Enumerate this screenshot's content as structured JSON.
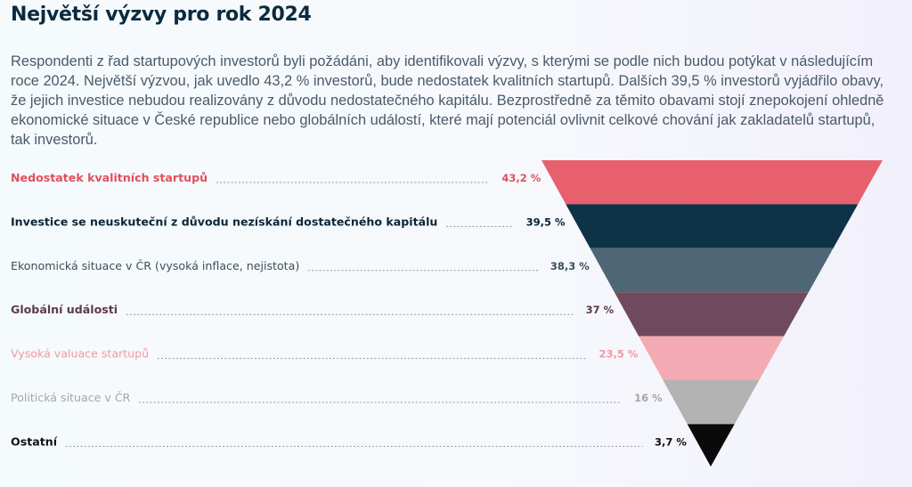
{
  "header": {
    "title": "Největší výzvy pro rok 2024",
    "intro": "Respondenti z řad startupových investorů byli požádáni, aby identifikovali výzvy, s kterými se podle nich budou potýkat v následujícím roce 2024. Největší výzvou, jak uvedlo 43,2 % investorů, bude nedostatek kvalitních startupů. Dalších 39,5 % investorů vyjádřilo obavy, že jejich investice nebudou realizovány z důvodu nedostatečného kapitálu. Bezprostředně za těmito obavami stojí znepokojení ohledně ekonomické situace v České republice nebo globálních událostí, které mají potenciál ovlivnit celkové chování jak zakladatelů startupů, tak investorů."
  },
  "chart_data": {
    "type": "funnel",
    "unit": "%",
    "items": [
      {
        "label": "Nedostatek kvalitních startupů",
        "value": 43.2,
        "value_label": "43,2 %",
        "color": "#e8606e",
        "text_color": "#e0505e",
        "bold": true
      },
      {
        "label": "Investice se neuskuteční z důvodu nezískání dostatečného kapitálu",
        "value": 39.5,
        "value_label": "39,5 %",
        "color": "#0e3347",
        "text_color": "#0b2538",
        "bold": true
      },
      {
        "label": "Ekonomická situace v ČR (vysoká inflace, nejistota)",
        "value": 38.3,
        "value_label": "38,3 %",
        "color": "#4e6675",
        "text_color": "#3b4f5c",
        "bold": false
      },
      {
        "label": "Globální události",
        "value": 37,
        "value_label": "37 %",
        "color": "#6e4a5c",
        "text_color": "#5e3a4c",
        "bold": true
      },
      {
        "label": "Vysoká valuace startupů",
        "value": 23.5,
        "value_label": "23,5 %",
        "color": "#f4aab2",
        "text_color": "#f09aa4",
        "bold": false
      },
      {
        "label": "Politická situace v ČR",
        "value": 16,
        "value_label": "16 %",
        "color": "#b3b3b3",
        "text_color": "#a6a6a6",
        "bold": false
      },
      {
        "label": "Ostatní",
        "value": 3.7,
        "value_label": "3,7 %",
        "color": "#0a0a0a",
        "text_color": "#111111",
        "bold": true
      }
    ]
  }
}
